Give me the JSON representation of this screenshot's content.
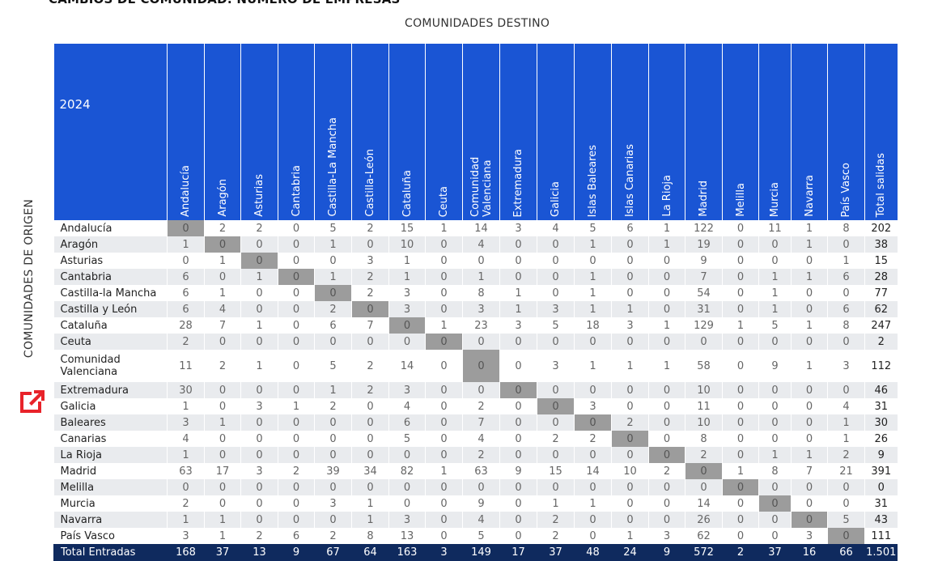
{
  "clipped_title": "CAMBIOS DE COMUNIDAD: NÚMERO DE EMPRESAS",
  "destination_label": "COMUNIDADES DESTINO",
  "origin_label": "COMUNIDADES DE ORIGEN",
  "year": "2024",
  "column_headers": [
    "Andalucía",
    "Aragón",
    "Asturias",
    "Cantabria",
    "Castilla-La Mancha",
    "Castilla-León",
    "Cataluña",
    "Ceuta",
    "Comunidad Valenciana",
    "Extremadura",
    "Galicia",
    "Islas Baleares",
    "Islas Canarias",
    "La Rioja",
    "Madrid",
    "Melilla",
    "Murcia",
    "Navarra",
    "País Vasco",
    "Total salidas"
  ],
  "rows": [
    {
      "name": "Andalucía",
      "values": [
        "0",
        "2",
        "2",
        "0",
        "5",
        "2",
        "15",
        "1",
        "14",
        "3",
        "4",
        "5",
        "6",
        "1",
        "122",
        "0",
        "11",
        "1",
        "8"
      ],
      "total": "202",
      "diag": 0
    },
    {
      "name": "Aragón",
      "values": [
        "1",
        "0",
        "0",
        "0",
        "1",
        "0",
        "10",
        "0",
        "4",
        "0",
        "0",
        "1",
        "0",
        "1",
        "19",
        "0",
        "0",
        "1",
        "0"
      ],
      "total": "38",
      "diag": 1
    },
    {
      "name": "Asturias",
      "values": [
        "0",
        "1",
        "0",
        "0",
        "0",
        "3",
        "1",
        "0",
        "0",
        "0",
        "0",
        "0",
        "0",
        "0",
        "9",
        "0",
        "0",
        "0",
        "1"
      ],
      "total": "15",
      "diag": 2
    },
    {
      "name": "Cantabria",
      "values": [
        "6",
        "0",
        "1",
        "0",
        "1",
        "2",
        "1",
        "0",
        "1",
        "0",
        "0",
        "1",
        "0",
        "0",
        "7",
        "0",
        "1",
        "1",
        "6"
      ],
      "total": "28",
      "diag": 3
    },
    {
      "name": "Castilla-la Mancha",
      "values": [
        "6",
        "1",
        "0",
        "0",
        "0",
        "2",
        "3",
        "0",
        "8",
        "1",
        "0",
        "1",
        "0",
        "0",
        "54",
        "0",
        "1",
        "0",
        "0"
      ],
      "total": "77",
      "diag": 4
    },
    {
      "name": "Castilla y León",
      "values": [
        "6",
        "4",
        "0",
        "0",
        "2",
        "0",
        "3",
        "0",
        "3",
        "1",
        "3",
        "1",
        "1",
        "0",
        "31",
        "0",
        "1",
        "0",
        "6"
      ],
      "total": "62",
      "diag": 5
    },
    {
      "name": "Cataluña",
      "values": [
        "28",
        "7",
        "1",
        "0",
        "6",
        "7",
        "0",
        "1",
        "23",
        "3",
        "5",
        "18",
        "3",
        "1",
        "129",
        "1",
        "5",
        "1",
        "8"
      ],
      "total": "247",
      "diag": 6
    },
    {
      "name": "Ceuta",
      "values": [
        "2",
        "0",
        "0",
        "0",
        "0",
        "0",
        "0",
        "0",
        "0",
        "0",
        "0",
        "0",
        "0",
        "0",
        "0",
        "0",
        "0",
        "0",
        "0"
      ],
      "total": "2",
      "diag": 7
    },
    {
      "name": "Comunidad Valenciana",
      "values": [
        "11",
        "2",
        "1",
        "0",
        "5",
        "2",
        "14",
        "0",
        "0",
        "0",
        "3",
        "1",
        "1",
        "1",
        "58",
        "0",
        "9",
        "1",
        "3"
      ],
      "total": "112",
      "diag": 8,
      "tall": true
    },
    {
      "name": "Extremadura",
      "values": [
        "30",
        "0",
        "0",
        "0",
        "1",
        "2",
        "3",
        "0",
        "0",
        "0",
        "0",
        "0",
        "0",
        "0",
        "10",
        "0",
        "0",
        "0",
        "0"
      ],
      "total": "46",
      "diag": 9
    },
    {
      "name": "Galicia",
      "values": [
        "1",
        "0",
        "3",
        "1",
        "2",
        "0",
        "4",
        "0",
        "2",
        "0",
        "0",
        "3",
        "0",
        "0",
        "11",
        "0",
        "0",
        "0",
        "4"
      ],
      "total": "31",
      "diag": 10
    },
    {
      "name": "Baleares",
      "values": [
        "3",
        "1",
        "0",
        "0",
        "0",
        "0",
        "6",
        "0",
        "7",
        "0",
        "0",
        "0",
        "2",
        "0",
        "10",
        "0",
        "0",
        "0",
        "1"
      ],
      "total": "30",
      "diag": 11
    },
    {
      "name": "Canarias",
      "values": [
        "4",
        "0",
        "0",
        "0",
        "0",
        "0",
        "5",
        "0",
        "4",
        "0",
        "2",
        "2",
        "0",
        "0",
        "8",
        "0",
        "0",
        "0",
        "1"
      ],
      "total": "26",
      "diag": 12
    },
    {
      "name": "La Rioja",
      "values": [
        "1",
        "0",
        "0",
        "0",
        "0",
        "0",
        "0",
        "0",
        "2",
        "0",
        "0",
        "0",
        "0",
        "0",
        "2",
        "0",
        "1",
        "1",
        "2"
      ],
      "total": "9",
      "diag": 13
    },
    {
      "name": "Madrid",
      "values": [
        "63",
        "17",
        "3",
        "2",
        "39",
        "34",
        "82",
        "1",
        "63",
        "9",
        "15",
        "14",
        "10",
        "2",
        "0",
        "1",
        "8",
        "7",
        "21"
      ],
      "total": "391",
      "diag": 14
    },
    {
      "name": "Melilla",
      "values": [
        "0",
        "0",
        "0",
        "0",
        "0",
        "0",
        "0",
        "0",
        "0",
        "0",
        "0",
        "0",
        "0",
        "0",
        "0",
        "0",
        "0",
        "0",
        "0"
      ],
      "total": "0",
      "diag": 15
    },
    {
      "name": "Murcia",
      "values": [
        "2",
        "0",
        "0",
        "0",
        "3",
        "1",
        "0",
        "0",
        "9",
        "0",
        "1",
        "1",
        "0",
        "0",
        "14",
        "0",
        "0",
        "0",
        "0"
      ],
      "total": "31",
      "diag": 16
    },
    {
      "name": "Navarra",
      "values": [
        "1",
        "1",
        "0",
        "0",
        "0",
        "1",
        "3",
        "0",
        "4",
        "0",
        "2",
        "0",
        "0",
        "0",
        "26",
        "0",
        "0",
        "0",
        "5"
      ],
      "total": "43",
      "diag": 17
    },
    {
      "name": "País Vasco",
      "values": [
        "3",
        "1",
        "2",
        "6",
        "2",
        "8",
        "13",
        "0",
        "5",
        "0",
        "2",
        "0",
        "1",
        "3",
        "62",
        "0",
        "0",
        "3",
        "0"
      ],
      "total": "111",
      "diag": 18
    }
  ],
  "totals_row": {
    "name": "Total Entradas",
    "values": [
      "168",
      "37",
      "13",
      "9",
      "67",
      "64",
      "163",
      "3",
      "149",
      "17",
      "37",
      "48",
      "24",
      "9",
      "572",
      "2",
      "37",
      "16",
      "66"
    ],
    "total": "1.501"
  },
  "icons": {
    "edit": "edit-external-icon"
  },
  "colors": {
    "header_bg": "#1a55d4",
    "footer_bg": "#0f2a5e",
    "diagonal": "#9c9c9c",
    "accent_icon": "#e8232a"
  }
}
